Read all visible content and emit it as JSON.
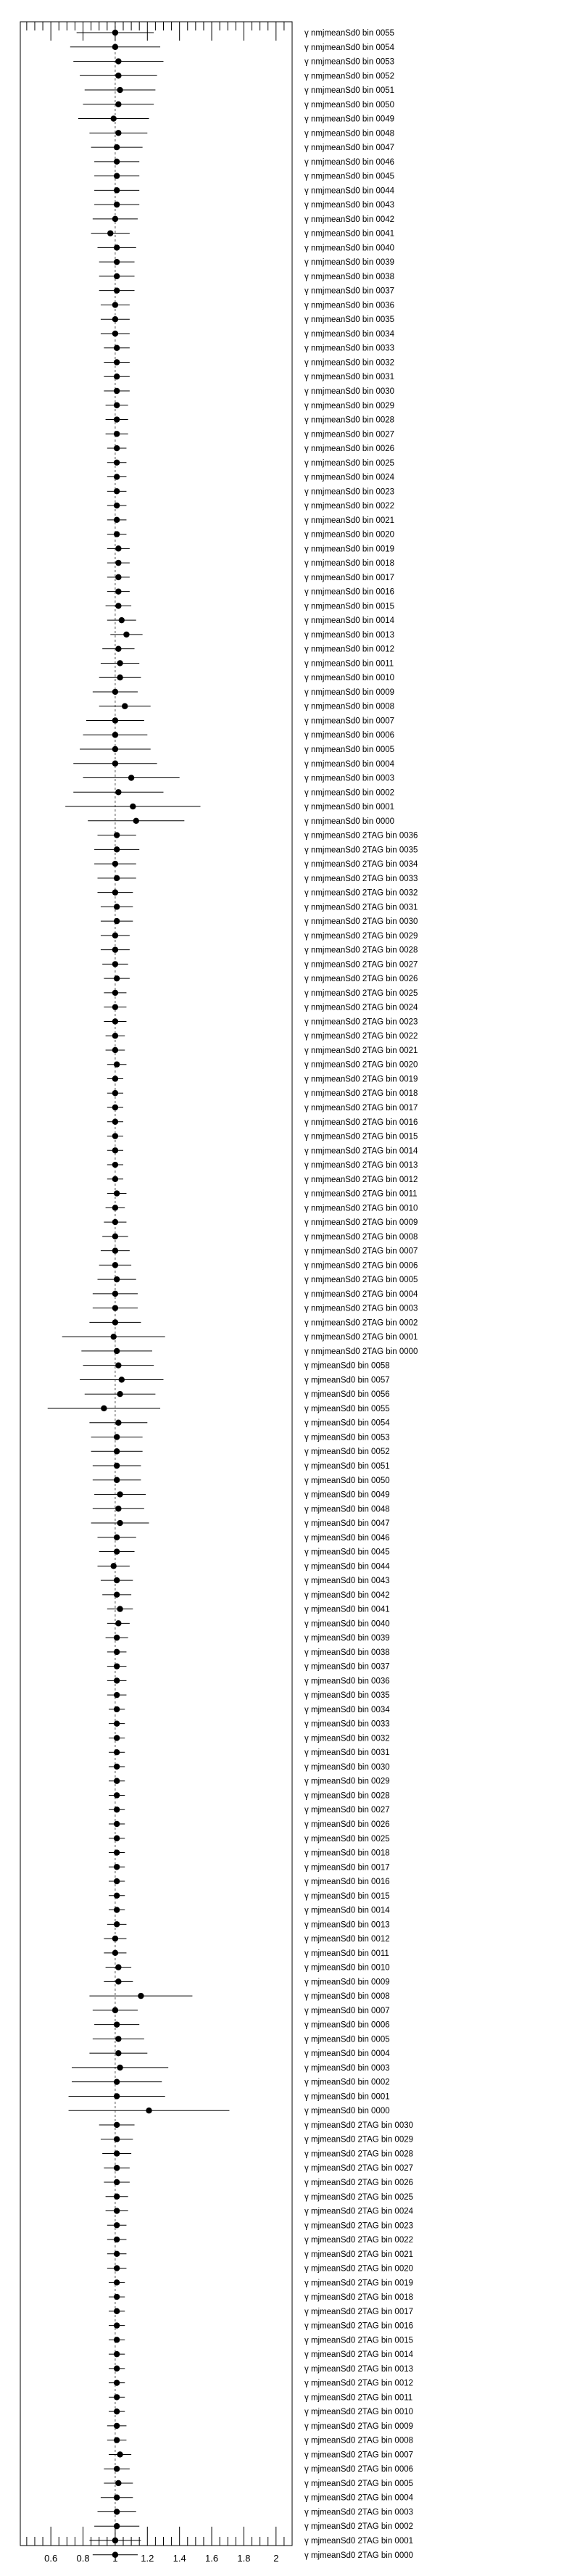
{
  "chart_data": {
    "type": "scatter",
    "title": "",
    "xlabel": "",
    "ylabel": "",
    "xlim": [
      0.41,
      2.1
    ],
    "xticks": [
      "0.6",
      "0.8",
      "1",
      "1.2",
      "1.4",
      "1.6",
      "1.8",
      "2"
    ],
    "reference_line": 1,
    "marker_color": "#000000",
    "rows": [
      {
        "label": "γ nmjmeanSd0 bin 0055",
        "value": 1.0,
        "err": 0.24
      },
      {
        "label": "γ nmjmeanSd0 bin 0054",
        "value": 1.0,
        "err": 0.28
      },
      {
        "label": "γ nmjmeanSd0 bin 0053",
        "value": 1.02,
        "err": 0.28
      },
      {
        "label": "γ nmjmeanSd0 bin 0052",
        "value": 1.02,
        "err": 0.24
      },
      {
        "label": "γ nmjmeanSd0 bin 0051",
        "value": 1.03,
        "err": 0.22
      },
      {
        "label": "γ nmjmeanSd0 bin 0050",
        "value": 1.02,
        "err": 0.22
      },
      {
        "label": "γ nmjmeanSd0 bin 0049",
        "value": 0.99,
        "err": 0.22
      },
      {
        "label": "γ nmjmeanSd0 bin 0048",
        "value": 1.02,
        "err": 0.18
      },
      {
        "label": "γ nmjmeanSd0 bin 0047",
        "value": 1.01,
        "err": 0.16
      },
      {
        "label": "γ nmjmeanSd0 bin 0046",
        "value": 1.01,
        "err": 0.14
      },
      {
        "label": "γ nmjmeanSd0 bin 0045",
        "value": 1.01,
        "err": 0.14
      },
      {
        "label": "γ nmjmeanSd0 bin 0044",
        "value": 1.01,
        "err": 0.14
      },
      {
        "label": "γ nmjmeanSd0 bin 0043",
        "value": 1.01,
        "err": 0.14
      },
      {
        "label": "γ nmjmeanSd0 bin 0042",
        "value": 1.0,
        "err": 0.14
      },
      {
        "label": "γ nmjmeanSd0 bin 0041",
        "value": 0.97,
        "err": 0.12
      },
      {
        "label": "γ nmjmeanSd0 bin 0040",
        "value": 1.01,
        "err": 0.12
      },
      {
        "label": "γ nmjmeanSd0 bin 0039",
        "value": 1.01,
        "err": 0.11
      },
      {
        "label": "γ nmjmeanSd0 bin 0038",
        "value": 1.01,
        "err": 0.11
      },
      {
        "label": "γ nmjmeanSd0 bin 0037",
        "value": 1.01,
        "err": 0.11
      },
      {
        "label": "γ nmjmeanSd0 bin 0036",
        "value": 1.0,
        "err": 0.09
      },
      {
        "label": "γ nmjmeanSd0 bin 0035",
        "value": 1.0,
        "err": 0.09
      },
      {
        "label": "γ nmjmeanSd0 bin 0034",
        "value": 1.0,
        "err": 0.09
      },
      {
        "label": "γ nmjmeanSd0 bin 0033",
        "value": 1.01,
        "err": 0.08
      },
      {
        "label": "γ nmjmeanSd0 bin 0032",
        "value": 1.01,
        "err": 0.08
      },
      {
        "label": "γ nmjmeanSd0 bin 0031",
        "value": 1.01,
        "err": 0.08
      },
      {
        "label": "γ nmjmeanSd0 bin 0030",
        "value": 1.01,
        "err": 0.08
      },
      {
        "label": "γ nmjmeanSd0 bin 0029",
        "value": 1.01,
        "err": 0.07
      },
      {
        "label": "γ nmjmeanSd0 bin 0028",
        "value": 1.01,
        "err": 0.07
      },
      {
        "label": "γ nmjmeanSd0 bin 0027",
        "value": 1.01,
        "err": 0.07
      },
      {
        "label": "γ nmjmeanSd0 bin 0026",
        "value": 1.01,
        "err": 0.06
      },
      {
        "label": "γ nmjmeanSd0 bin 0025",
        "value": 1.01,
        "err": 0.06
      },
      {
        "label": "γ nmjmeanSd0 bin 0024",
        "value": 1.01,
        "err": 0.06
      },
      {
        "label": "γ nmjmeanSd0 bin 0023",
        "value": 1.01,
        "err": 0.06
      },
      {
        "label": "γ nmjmeanSd0 bin 0022",
        "value": 1.01,
        "err": 0.06
      },
      {
        "label": "γ nmjmeanSd0 bin 0021",
        "value": 1.01,
        "err": 0.06
      },
      {
        "label": "γ nmjmeanSd0 bin 0020",
        "value": 1.01,
        "err": 0.06
      },
      {
        "label": "γ nmjmeanSd0 bin 0019",
        "value": 1.02,
        "err": 0.07
      },
      {
        "label": "γ nmjmeanSd0 bin 0018",
        "value": 1.02,
        "err": 0.07
      },
      {
        "label": "γ nmjmeanSd0 bin 0017",
        "value": 1.02,
        "err": 0.07
      },
      {
        "label": "γ nmjmeanSd0 bin 0016",
        "value": 1.02,
        "err": 0.07
      },
      {
        "label": "γ nmjmeanSd0 bin 0015",
        "value": 1.02,
        "err": 0.08
      },
      {
        "label": "γ nmjmeanSd0 bin 0014",
        "value": 1.04,
        "err": 0.09
      },
      {
        "label": "γ nmjmeanSd0 bin 0013",
        "value": 1.07,
        "err": 0.1
      },
      {
        "label": "γ nmjmeanSd0 bin 0012",
        "value": 1.02,
        "err": 0.1
      },
      {
        "label": "γ nmjmeanSd0 bin 0011",
        "value": 1.03,
        "err": 0.12
      },
      {
        "label": "γ nmjmeanSd0 bin 0010",
        "value": 1.03,
        "err": 0.13
      },
      {
        "label": "γ nmjmeanSd0 bin 0009",
        "value": 1.0,
        "err": 0.14
      },
      {
        "label": "γ nmjmeanSd0 bin 0008",
        "value": 1.06,
        "err": 0.16
      },
      {
        "label": "γ nmjmeanSd0 bin 0007",
        "value": 1.0,
        "err": 0.18
      },
      {
        "label": "γ nmjmeanSd0 bin 0006",
        "value": 1.0,
        "err": 0.2
      },
      {
        "label": "γ nmjmeanSd0 bin 0005",
        "value": 1.0,
        "err": 0.22
      },
      {
        "label": "γ nmjmeanSd0 bin 0004",
        "value": 1.0,
        "err": 0.26
      },
      {
        "label": "γ nmjmeanSd0 bin 0003",
        "value": 1.1,
        "err": 0.3
      },
      {
        "label": "γ nmjmeanSd0 bin 0002",
        "value": 1.02,
        "err": 0.28
      },
      {
        "label": "γ nmjmeanSd0 bin 0001",
        "value": 1.11,
        "err": 0.42
      },
      {
        "label": "γ nmjmeanSd0 bin 0000",
        "value": 1.13,
        "err": 0.3
      },
      {
        "label": "γ nmjmeanSd0 2TAG bin 0036",
        "value": 1.01,
        "err": 0.12
      },
      {
        "label": "γ nmjmeanSd0 2TAG bin 0035",
        "value": 1.01,
        "err": 0.14
      },
      {
        "label": "γ nmjmeanSd0 2TAG bin 0034",
        "value": 1.0,
        "err": 0.13
      },
      {
        "label": "γ nmjmeanSd0 2TAG bin 0033",
        "value": 1.01,
        "err": 0.12
      },
      {
        "label": "γ nmjmeanSd0 2TAG bin 0032",
        "value": 1.0,
        "err": 0.11
      },
      {
        "label": "γ nmjmeanSd0 2TAG bin 0031",
        "value": 1.01,
        "err": 0.1
      },
      {
        "label": "γ nmjmeanSd0 2TAG bin 0030",
        "value": 1.01,
        "err": 0.1
      },
      {
        "label": "γ nmjmeanSd0 2TAG bin 0029",
        "value": 1.0,
        "err": 0.09
      },
      {
        "label": "γ nmjmeanSd0 2TAG bin 0028",
        "value": 1.0,
        "err": 0.09
      },
      {
        "label": "γ nmjmeanSd0 2TAG bin 0027",
        "value": 1.0,
        "err": 0.08
      },
      {
        "label": "γ nmjmeanSd0 2TAG bin 0026",
        "value": 1.01,
        "err": 0.08
      },
      {
        "label": "γ nmjmeanSd0 2TAG bin 0025",
        "value": 1.0,
        "err": 0.07
      },
      {
        "label": "γ nmjmeanSd0 2TAG bin 0024",
        "value": 1.0,
        "err": 0.07
      },
      {
        "label": "γ nmjmeanSd0 2TAG bin 0023",
        "value": 1.0,
        "err": 0.07
      },
      {
        "label": "γ nmjmeanSd0 2TAG bin 0022",
        "value": 1.0,
        "err": 0.06
      },
      {
        "label": "γ nmjmeanSd0 2TAG bin 0021",
        "value": 1.0,
        "err": 0.06
      },
      {
        "label": "γ nmjmeanSd0 2TAG bin 0020",
        "value": 1.01,
        "err": 0.06
      },
      {
        "label": "γ nmjmeanSd0 2TAG bin 0019",
        "value": 1.0,
        "err": 0.05
      },
      {
        "label": "γ nmjmeanSd0 2TAG bin 0018",
        "value": 1.0,
        "err": 0.05
      },
      {
        "label": "γ nmjmeanSd0 2TAG bin 0017",
        "value": 1.0,
        "err": 0.05
      },
      {
        "label": "γ nmjmeanSd0 2TAG bin 0016",
        "value": 1.0,
        "err": 0.05
      },
      {
        "label": "γ nmjmeanSd0 2TAG bin 0015",
        "value": 1.0,
        "err": 0.05
      },
      {
        "label": "γ nmjmeanSd0 2TAG bin 0014",
        "value": 1.0,
        "err": 0.05
      },
      {
        "label": "γ nmjmeanSd0 2TAG bin 0013",
        "value": 1.0,
        "err": 0.05
      },
      {
        "label": "γ nmjmeanSd0 2TAG bin 0012",
        "value": 1.0,
        "err": 0.05
      },
      {
        "label": "γ nmjmeanSd0 2TAG bin 0011",
        "value": 1.01,
        "err": 0.06
      },
      {
        "label": "γ nmjmeanSd0 2TAG bin 0010",
        "value": 1.0,
        "err": 0.06
      },
      {
        "label": "γ nmjmeanSd0 2TAG bin 0009",
        "value": 1.0,
        "err": 0.07
      },
      {
        "label": "γ nmjmeanSd0 2TAG bin 0008",
        "value": 1.0,
        "err": 0.08
      },
      {
        "label": "γ nmjmeanSd0 2TAG bin 0007",
        "value": 1.0,
        "err": 0.09
      },
      {
        "label": "γ nmjmeanSd0 2TAG bin 0006",
        "value": 1.0,
        "err": 0.1
      },
      {
        "label": "γ nmjmeanSd0 2TAG bin 0005",
        "value": 1.01,
        "err": 0.12
      },
      {
        "label": "γ nmjmeanSd0 2TAG bin 0004",
        "value": 1.0,
        "err": 0.14
      },
      {
        "label": "γ nmjmeanSd0 2TAG bin 0003",
        "value": 1.0,
        "err": 0.14
      },
      {
        "label": "γ nmjmeanSd0 2TAG bin 0002",
        "value": 1.0,
        "err": 0.16
      },
      {
        "label": "γ nmjmeanSd0 2TAG bin 0001",
        "value": 0.99,
        "err": 0.32
      },
      {
        "label": "γ nmjmeanSd0 2TAG bin 0000",
        "value": 1.01,
        "err": 0.22
      },
      {
        "label": "γ mjmeanSd0 bin 0058",
        "value": 1.02,
        "err": 0.22
      },
      {
        "label": "γ mjmeanSd0 bin 0057",
        "value": 1.04,
        "err": 0.26
      },
      {
        "label": "γ mjmeanSd0 bin 0056",
        "value": 1.03,
        "err": 0.22
      },
      {
        "label": "γ mjmeanSd0 bin 0055",
        "value": 0.93,
        "err": 0.35
      },
      {
        "label": "γ mjmeanSd0 bin 0054",
        "value": 1.02,
        "err": 0.18
      },
      {
        "label": "γ mjmeanSd0 bin 0053",
        "value": 1.01,
        "err": 0.16
      },
      {
        "label": "γ mjmeanSd0 bin 0052",
        "value": 1.01,
        "err": 0.16
      },
      {
        "label": "γ mjmeanSd0 bin 0051",
        "value": 1.01,
        "err": 0.15
      },
      {
        "label": "γ mjmeanSd0 bin 0050",
        "value": 1.01,
        "err": 0.15
      },
      {
        "label": "γ mjmeanSd0 bin 0049",
        "value": 1.03,
        "err": 0.16
      },
      {
        "label": "γ mjmeanSd0 bin 0048",
        "value": 1.02,
        "err": 0.16
      },
      {
        "label": "γ mjmeanSd0 bin 0047",
        "value": 1.03,
        "err": 0.18
      },
      {
        "label": "γ mjmeanSd0 bin 0046",
        "value": 1.01,
        "err": 0.12
      },
      {
        "label": "γ mjmeanSd0 bin 0045",
        "value": 1.01,
        "err": 0.11
      },
      {
        "label": "γ mjmeanSd0 bin 0044",
        "value": 0.99,
        "err": 0.1
      },
      {
        "label": "γ mjmeanSd0 bin 0043",
        "value": 1.01,
        "err": 0.1
      },
      {
        "label": "γ mjmeanSd0 bin 0042",
        "value": 1.01,
        "err": 0.09
      },
      {
        "label": "γ mjmeanSd0 bin 0041",
        "value": 1.03,
        "err": 0.08
      },
      {
        "label": "γ mjmeanSd0 bin 0040",
        "value": 1.02,
        "err": 0.07
      },
      {
        "label": "γ mjmeanSd0 bin 0039",
        "value": 1.01,
        "err": 0.07
      },
      {
        "label": "γ mjmeanSd0 bin 0038",
        "value": 1.01,
        "err": 0.06
      },
      {
        "label": "γ mjmeanSd0 bin 0037",
        "value": 1.01,
        "err": 0.06
      },
      {
        "label": "γ mjmeanSd0 bin 0036",
        "value": 1.01,
        "err": 0.06
      },
      {
        "label": "γ mjmeanSd0 bin 0035",
        "value": 1.01,
        "err": 0.06
      },
      {
        "label": "γ mjmeanSd0 bin 0034",
        "value": 1.01,
        "err": 0.05
      },
      {
        "label": "γ mjmeanSd0 bin 0033",
        "value": 1.01,
        "err": 0.05
      },
      {
        "label": "γ mjmeanSd0 bin 0032",
        "value": 1.01,
        "err": 0.05
      },
      {
        "label": "γ mjmeanSd0 bin 0031",
        "value": 1.01,
        "err": 0.05
      },
      {
        "label": "γ mjmeanSd0 bin 0030",
        "value": 1.01,
        "err": 0.05
      },
      {
        "label": "γ mjmeanSd0 bin 0029",
        "value": 1.01,
        "err": 0.05
      },
      {
        "label": "γ mjmeanSd0 bin 0028",
        "value": 1.01,
        "err": 0.05
      },
      {
        "label": "γ mjmeanSd0 bin 0027",
        "value": 1.01,
        "err": 0.05
      },
      {
        "label": "γ mjmeanSd0 bin 0026",
        "value": 1.01,
        "err": 0.05
      },
      {
        "label": "γ mjmeanSd0 bin 0025",
        "value": 1.01,
        "err": 0.05
      },
      {
        "label": "γ mjmeanSd0 bin 0018",
        "value": 1.01,
        "err": 0.05
      },
      {
        "label": "γ mjmeanSd0 bin 0017",
        "value": 1.01,
        "err": 0.05
      },
      {
        "label": "γ mjmeanSd0 bin 0016",
        "value": 1.01,
        "err": 0.05
      },
      {
        "label": "γ mjmeanSd0 bin 0015",
        "value": 1.01,
        "err": 0.05
      },
      {
        "label": "γ mjmeanSd0 bin 0014",
        "value": 1.01,
        "err": 0.05
      },
      {
        "label": "γ mjmeanSd0 bin 0013",
        "value": 1.01,
        "err": 0.06
      },
      {
        "label": "γ mjmeanSd0 bin 0012",
        "value": 1.0,
        "err": 0.07
      },
      {
        "label": "γ mjmeanSd0 bin 0011",
        "value": 1.0,
        "err": 0.07
      },
      {
        "label": "γ mjmeanSd0 bin 0010",
        "value": 1.02,
        "err": 0.08
      },
      {
        "label": "γ mjmeanSd0 bin 0009",
        "value": 1.02,
        "err": 0.09
      },
      {
        "label": "γ mjmeanSd0 bin 0008",
        "value": 1.16,
        "err": 0.32
      },
      {
        "label": "γ mjmeanSd0 bin 0007",
        "value": 1.0,
        "err": 0.14
      },
      {
        "label": "γ mjmeanSd0 bin 0006",
        "value": 1.01,
        "err": 0.14
      },
      {
        "label": "γ mjmeanSd0 bin 0005",
        "value": 1.02,
        "err": 0.16
      },
      {
        "label": "γ mjmeanSd0 bin 0004",
        "value": 1.02,
        "err": 0.18
      },
      {
        "label": "γ mjmeanSd0 bin 0003",
        "value": 1.03,
        "err": 0.3
      },
      {
        "label": "γ mjmeanSd0 bin 0002",
        "value": 1.01,
        "err": 0.28
      },
      {
        "label": "γ mjmeanSd0 bin 0001",
        "value": 1.01,
        "err": 0.3
      },
      {
        "label": "γ mjmeanSd0 bin 0000",
        "value": 1.21,
        "err": 0.5
      },
      {
        "label": "γ mjmeanSd0 2TAG bin 0030",
        "value": 1.01,
        "err": 0.11
      },
      {
        "label": "γ mjmeanSd0 2TAG bin 0029",
        "value": 1.01,
        "err": 0.1
      },
      {
        "label": "γ mjmeanSd0 2TAG bin 0028",
        "value": 1.01,
        "err": 0.09
      },
      {
        "label": "γ mjmeanSd0 2TAG bin 0027",
        "value": 1.01,
        "err": 0.08
      },
      {
        "label": "γ mjmeanSd0 2TAG bin 0026",
        "value": 1.01,
        "err": 0.08
      },
      {
        "label": "γ mjmeanSd0 2TAG bin 0025",
        "value": 1.01,
        "err": 0.07
      },
      {
        "label": "γ mjmeanSd0 2TAG bin 0024",
        "value": 1.01,
        "err": 0.07
      },
      {
        "label": "γ mjmeanSd0 2TAG bin 0023",
        "value": 1.01,
        "err": 0.06
      },
      {
        "label": "γ mjmeanSd0 2TAG bin 0022",
        "value": 1.01,
        "err": 0.06
      },
      {
        "label": "γ mjmeanSd0 2TAG bin 0021",
        "value": 1.01,
        "err": 0.06
      },
      {
        "label": "γ mjmeanSd0 2TAG bin 0020",
        "value": 1.01,
        "err": 0.06
      },
      {
        "label": "γ mjmeanSd0 2TAG bin 0019",
        "value": 1.01,
        "err": 0.05
      },
      {
        "label": "γ mjmeanSd0 2TAG bin 0018",
        "value": 1.01,
        "err": 0.05
      },
      {
        "label": "γ mjmeanSd0 2TAG bin 0017",
        "value": 1.01,
        "err": 0.05
      },
      {
        "label": "γ mjmeanSd0 2TAG bin 0016",
        "value": 1.01,
        "err": 0.05
      },
      {
        "label": "γ mjmeanSd0 2TAG bin 0015",
        "value": 1.01,
        "err": 0.05
      },
      {
        "label": "γ mjmeanSd0 2TAG bin 0014",
        "value": 1.01,
        "err": 0.05
      },
      {
        "label": "γ mjmeanSd0 2TAG bin 0013",
        "value": 1.01,
        "err": 0.05
      },
      {
        "label": "γ mjmeanSd0 2TAG bin 0012",
        "value": 1.01,
        "err": 0.05
      },
      {
        "label": "γ mjmeanSd0 2TAG bin 0011",
        "value": 1.01,
        "err": 0.05
      },
      {
        "label": "γ mjmeanSd0 2TAG bin 0010",
        "value": 1.01,
        "err": 0.05
      },
      {
        "label": "γ mjmeanSd0 2TAG bin 0009",
        "value": 1.01,
        "err": 0.06
      },
      {
        "label": "γ mjmeanSd0 2TAG bin 0008",
        "value": 1.01,
        "err": 0.06
      },
      {
        "label": "γ mjmeanSd0 2TAG bin 0007",
        "value": 1.03,
        "err": 0.07
      },
      {
        "label": "γ mjmeanSd0 2TAG bin 0006",
        "value": 1.01,
        "err": 0.08
      },
      {
        "label": "γ mjmeanSd0 2TAG bin 0005",
        "value": 1.02,
        "err": 0.09
      },
      {
        "label": "γ mjmeanSd0 2TAG bin 0004",
        "value": 1.01,
        "err": 0.1
      },
      {
        "label": "γ mjmeanSd0 2TAG bin 0003",
        "value": 1.01,
        "err": 0.12
      },
      {
        "label": "γ mjmeanSd0 2TAG bin 0002",
        "value": 1.01,
        "err": 0.14
      },
      {
        "label": "γ mjmeanSd0 2TAG bin 0001",
        "value": 1.0,
        "err": 0.16
      },
      {
        "label": "γ mjmeanSd0 2TAG bin 0000",
        "value": 1.0,
        "err": 0.14
      }
    ]
  }
}
